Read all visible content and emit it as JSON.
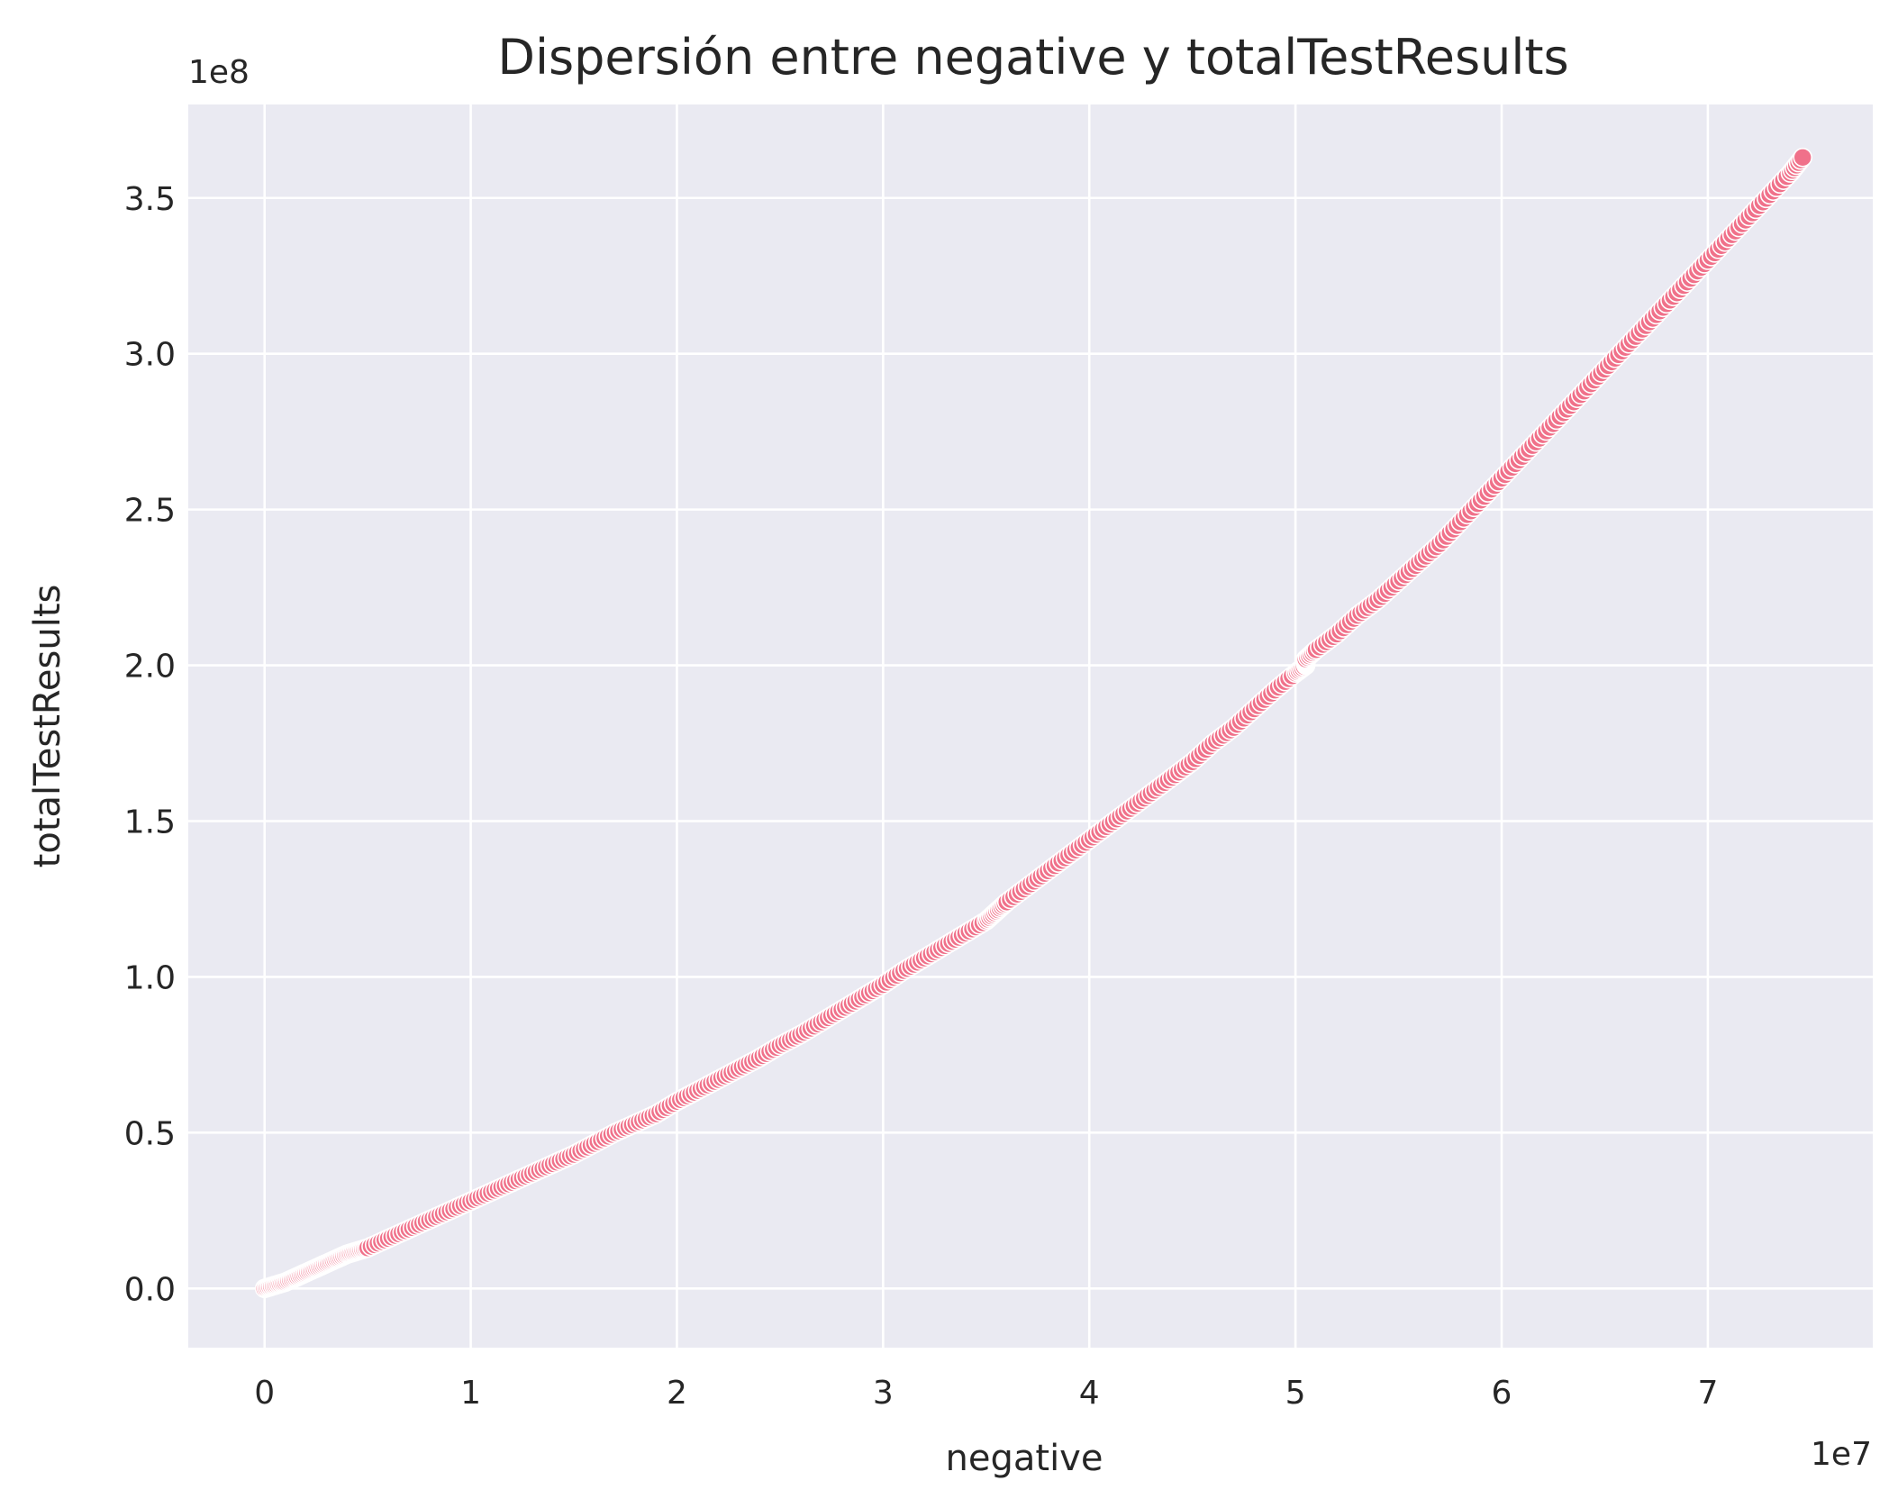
{
  "chart_data": {
    "type": "scatter",
    "title": "Dispersión entre negative y totalTestResults",
    "xlabel": "negative",
    "ylabel": "totalTestResults",
    "x_offset_label": "1e7",
    "y_offset_label": "1e8",
    "xlim": [
      -0.37,
      7.8
    ],
    "ylim": [
      -0.19,
      3.8
    ],
    "x_ticks": [
      {
        "value": 0,
        "label": "0"
      },
      {
        "value": 1,
        "label": "1"
      },
      {
        "value": 2,
        "label": "2"
      },
      {
        "value": 3,
        "label": "3"
      },
      {
        "value": 4,
        "label": "4"
      },
      {
        "value": 5,
        "label": "5"
      },
      {
        "value": 6,
        "label": "6"
      },
      {
        "value": 7,
        "label": "7"
      }
    ],
    "y_ticks": [
      {
        "value": 0.0,
        "label": "0.0"
      },
      {
        "value": 0.5,
        "label": "0.5"
      },
      {
        "value": 1.0,
        "label": "1.0"
      },
      {
        "value": 1.5,
        "label": "1.5"
      },
      {
        "value": 2.0,
        "label": "2.0"
      },
      {
        "value": 2.5,
        "label": "2.5"
      },
      {
        "value": 3.0,
        "label": "3.0"
      },
      {
        "value": 3.5,
        "label": "3.5"
      }
    ],
    "grid": true,
    "marker_color": "#f0718a",
    "background_color": "#eaeaf2",
    "x": [
      0.0,
      0.05,
      0.1,
      0.15,
      0.2,
      0.25,
      0.3,
      0.35,
      0.4,
      0.45,
      0.5,
      0.6,
      0.7,
      0.8,
      0.9,
      1.0,
      1.1,
      1.2,
      1.3,
      1.4,
      1.5,
      1.6,
      1.7,
      1.8,
      1.9,
      2.0,
      2.1,
      2.2,
      2.3,
      2.4,
      2.5,
      2.6,
      2.7,
      2.8,
      2.9,
      3.0,
      3.1,
      3.2,
      3.3,
      3.4,
      3.5,
      3.55,
      3.6,
      3.7,
      3.8,
      3.9,
      4.0,
      4.1,
      4.2,
      4.3,
      4.4,
      4.5,
      4.6,
      4.7,
      4.8,
      4.9,
      5.0,
      5.05,
      5.05,
      5.1,
      5.2,
      5.3,
      5.4,
      5.5,
      5.6,
      5.7,
      5.8,
      5.9,
      6.0,
      6.1,
      6.2,
      6.3,
      6.4,
      6.5,
      6.6,
      6.7,
      6.8,
      6.9,
      7.0,
      7.1,
      7.2,
      7.3,
      7.4,
      7.46
    ],
    "y": [
      0.0,
      0.01,
      0.02,
      0.035,
      0.05,
      0.065,
      0.08,
      0.095,
      0.11,
      0.12,
      0.13,
      0.16,
      0.19,
      0.22,
      0.25,
      0.28,
      0.31,
      0.34,
      0.37,
      0.4,
      0.43,
      0.465,
      0.5,
      0.53,
      0.56,
      0.6,
      0.635,
      0.67,
      0.705,
      0.74,
      0.78,
      0.815,
      0.855,
      0.895,
      0.935,
      0.975,
      1.02,
      1.06,
      1.1,
      1.14,
      1.18,
      1.21,
      1.24,
      1.29,
      1.34,
      1.39,
      1.44,
      1.49,
      1.54,
      1.59,
      1.64,
      1.69,
      1.75,
      1.8,
      1.86,
      1.92,
      1.975,
      2.0,
      2.02,
      2.05,
      2.1,
      2.16,
      2.21,
      2.27,
      2.33,
      2.39,
      2.46,
      2.53,
      2.6,
      2.67,
      2.74,
      2.81,
      2.88,
      2.95,
      3.02,
      3.09,
      3.16,
      3.23,
      3.3,
      3.37,
      3.44,
      3.51,
      3.58,
      3.63
    ]
  }
}
